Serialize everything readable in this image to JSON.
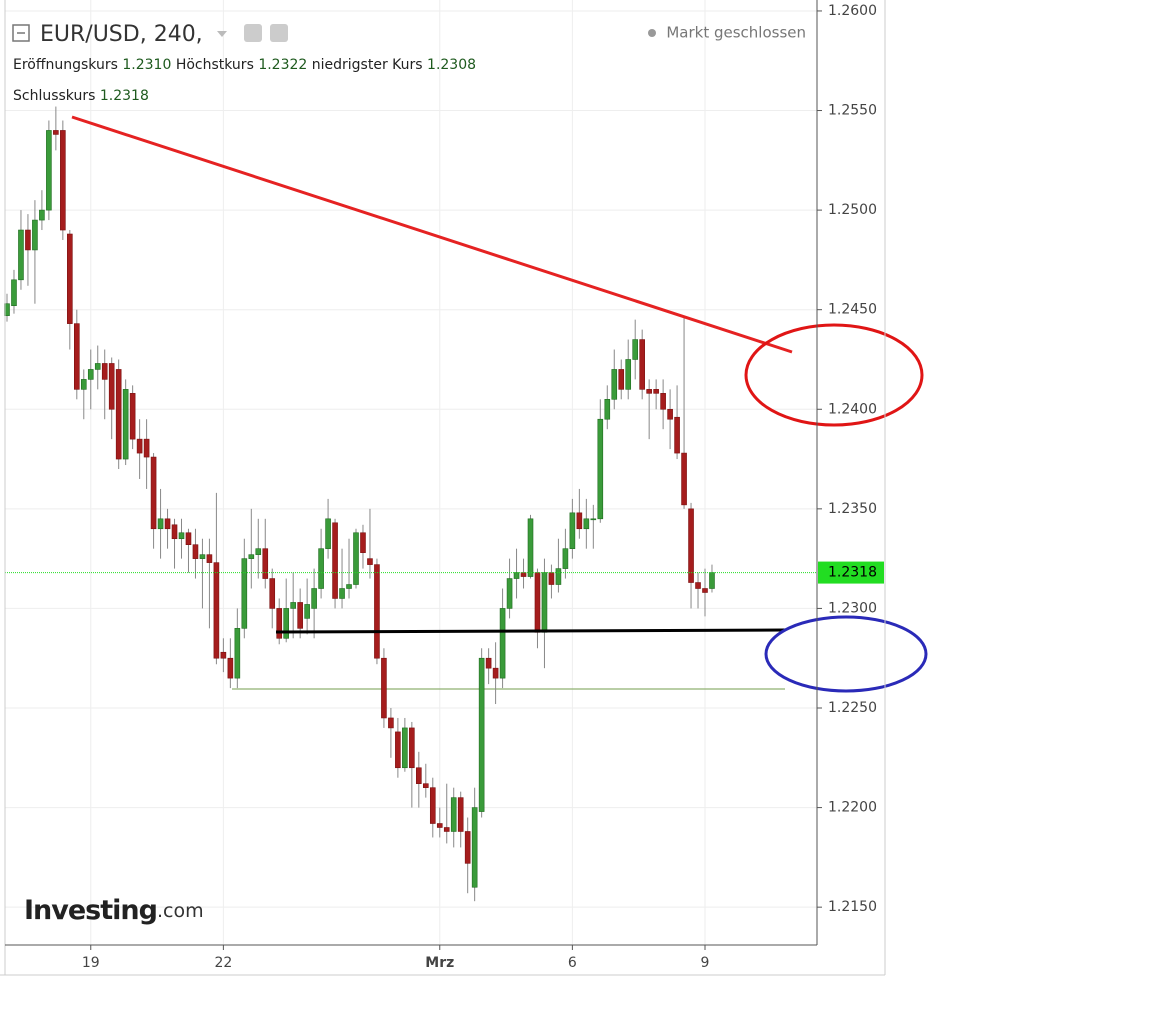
{
  "chart_data": {
    "type": "candlestick",
    "title": "EUR/USD, 240,",
    "status": "Markt geschlossen",
    "ohlc_legend": [
      {
        "label": "Eröffnungskurs",
        "value": 1.231,
        "value_label": "1.2310"
      },
      {
        "label": "Höchstkurs",
        "value": 1.2322
      },
      {
        "label": "niedrigster Kurs",
        "value": 1.2308
      },
      {
        "label": "Schlusskurs",
        "value": 1.2318
      }
    ],
    "logo": {
      "brand": "Investing",
      "suffix": ".com"
    },
    "up_color": "#3a9b3a",
    "down_color": "#a51d1d",
    "last_price": 1.2318,
    "last_price_color": "#22dd22",
    "grid": true,
    "ylim": [
      1.2131,
      1.26055
    ],
    "yticks": [
      {
        "value": 1.26,
        "label": "1.2600"
      },
      {
        "value": 1.255,
        "label": "1.2550"
      },
      {
        "value": 1.25,
        "label": "1.2500"
      },
      {
        "value": 1.245,
        "label": "1.2450"
      },
      {
        "value": 1.24,
        "label": "1.2400"
      },
      {
        "value": 1.235,
        "label": "1.2350"
      },
      {
        "value": 1.23,
        "label": "1.2300"
      },
      {
        "value": 1.225,
        "label": "1.2250"
      },
      {
        "value": 1.22,
        "label": "1.2200"
      },
      {
        "value": 1.215,
        "label": "1.2150"
      }
    ],
    "categories": [
      null,
      null,
      null,
      null,
      null,
      null,
      null,
      null,
      null,
      null,
      null,
      null,
      "19",
      null,
      null,
      null,
      null,
      null,
      null,
      null,
      null,
      null,
      null,
      null,
      null,
      null,
      null,
      null,
      null,
      null,
      null,
      "22",
      null,
      null,
      null,
      null,
      null,
      null,
      null,
      null,
      null,
      null,
      null,
      null,
      null,
      null,
      null,
      null,
      null,
      null,
      null,
      null,
      null,
      null,
      null,
      null,
      null,
      null,
      null,
      null,
      null,
      null,
      "Mrz",
      null,
      null,
      null,
      null,
      null,
      null,
      null,
      null,
      null,
      null,
      null,
      null,
      null,
      null,
      null,
      null,
      null,
      null,
      "6",
      null,
      null,
      null,
      null,
      null,
      null,
      null,
      null,
      null,
      null,
      null,
      null,
      null,
      null,
      null,
      null,
      null,
      null,
      "9",
      null
    ],
    "open": [
      1.2447,
      1.2452,
      1.2465,
      1.249,
      1.248,
      1.2495,
      1.25,
      1.254,
      1.254,
      1.2488,
      1.2443,
      1.241,
      1.2415,
      1.242,
      1.2423,
      1.2423,
      1.242,
      1.2375,
      1.2408,
      1.2385,
      1.2385,
      1.2376,
      1.234,
      1.2345,
      1.2342,
      1.2335,
      1.2338,
      1.2332,
      1.2325,
      1.2327,
      1.2323,
      1.2278,
      1.2275,
      1.2265,
      1.229,
      1.2325,
      1.2327,
      1.233,
      1.2315,
      1.23,
      1.2285,
      1.23,
      1.2303,
      1.2295,
      1.23,
      1.231,
      1.233,
      1.2343,
      1.2305,
      1.231,
      1.2312,
      1.2338,
      1.2325,
      1.2322,
      1.2275,
      1.2245,
      1.2238,
      1.222,
      1.224,
      1.222,
      1.2212,
      1.221,
      1.2192,
      1.219,
      1.2188,
      1.2205,
      1.2188,
      1.216,
      1.2198,
      1.2275,
      1.227,
      1.2265,
      1.23,
      1.2315,
      1.2318,
      1.2316,
      1.2318,
      1.2288,
      1.2318,
      1.2312,
      1.232,
      1.233,
      1.2348,
      1.234,
      1.2345,
      1.2345,
      1.2395,
      1.2405,
      1.242,
      1.241,
      1.2425,
      1.2435,
      1.241,
      1.241,
      1.2408,
      1.24,
      1.2396,
      1.2378,
      1.235,
      1.2313,
      1.231,
      1.231
    ],
    "high": [
      1.2458,
      1.247,
      1.25,
      1.2498,
      1.2505,
      1.251,
      1.2545,
      1.2552,
      1.2545,
      1.249,
      1.245,
      1.242,
      1.243,
      1.2432,
      1.243,
      1.2426,
      1.2425,
      1.2415,
      1.2412,
      1.2395,
      1.2395,
      1.2378,
      1.236,
      1.235,
      1.2345,
      1.2345,
      1.234,
      1.234,
      1.2335,
      1.2335,
      1.2358,
      1.2285,
      1.2285,
      1.23,
      1.2335,
      1.235,
      1.2345,
      1.2345,
      1.232,
      1.2305,
      1.2315,
      1.2318,
      1.231,
      1.2315,
      1.232,
      1.234,
      1.2355,
      1.2345,
      1.233,
      1.2335,
      1.234,
      1.2342,
      1.235,
      1.2325,
      1.228,
      1.225,
      1.2245,
      1.2245,
      1.2243,
      1.2228,
      1.2222,
      1.2215,
      1.22,
      1.2212,
      1.221,
      1.2208,
      1.2195,
      1.221,
      1.228,
      1.228,
      1.2283,
      1.231,
      1.2325,
      1.233,
      1.2325,
      1.2347,
      1.232,
      1.2325,
      1.2322,
      1.2335,
      1.234,
      1.2355,
      1.236,
      1.2355,
      1.2352,
      1.2405,
      1.2412,
      1.243,
      1.2425,
      1.2435,
      1.2445,
      1.244,
      1.2415,
      1.2415,
      1.2415,
      1.241,
      1.2412,
      1.2447,
      1.2353,
      1.2318,
      1.232,
      1.2322
    ],
    "low": [
      1.2444,
      1.2448,
      1.246,
      1.2462,
      1.2453,
      1.249,
      1.2495,
      1.253,
      1.2485,
      1.243,
      1.2405,
      1.2395,
      1.24,
      1.241,
      1.2395,
      1.2385,
      1.237,
      1.2372,
      1.238,
      1.2365,
      1.236,
      1.233,
      1.2325,
      1.233,
      1.232,
      1.2325,
      1.2318,
      1.2315,
      1.23,
      1.229,
      1.2272,
      1.2268,
      1.226,
      1.226,
      1.2285,
      1.231,
      1.2315,
      1.231,
      1.229,
      1.2282,
      1.2283,
      1.2285,
      1.2285,
      1.2287,
      1.2285,
      1.2305,
      1.2325,
      1.23,
      1.23,
      1.2305,
      1.231,
      1.232,
      1.2315,
      1.2272,
      1.224,
      1.2225,
      1.2215,
      1.2218,
      1.22,
      1.22,
      1.2205,
      1.2185,
      1.2185,
      1.2182,
      1.218,
      1.218,
      1.2157,
      1.2153,
      1.2195,
      1.2262,
      1.2252,
      1.226,
      1.2295,
      1.2305,
      1.231,
      1.2315,
      1.228,
      1.227,
      1.2305,
      1.2308,
      1.2315,
      1.2325,
      1.2335,
      1.233,
      1.233,
      1.2343,
      1.239,
      1.24,
      1.2405,
      1.2405,
      1.2415,
      1.2405,
      1.2385,
      1.24,
      1.239,
      1.238,
      1.2375,
      1.235,
      1.23,
      1.23,
      1.2296,
      1.2308
    ],
    "close": [
      1.2453,
      1.2465,
      1.249,
      1.248,
      1.2495,
      1.25,
      1.254,
      1.2538,
      1.249,
      1.2443,
      1.241,
      1.2415,
      1.242,
      1.2423,
      1.2415,
      1.24,
      1.2375,
      1.241,
      1.2385,
      1.2378,
      1.2376,
      1.234,
      1.2345,
      1.234,
      1.2335,
      1.2338,
      1.2332,
      1.2325,
      1.2327,
      1.2323,
      1.2275,
      1.2275,
      1.2265,
      1.229,
      1.2325,
      1.2327,
      1.233,
      1.2315,
      1.23,
      1.2285,
      1.23,
      1.2303,
      1.229,
      1.2302,
      1.231,
      1.233,
      1.2345,
      1.2305,
      1.231,
      1.2312,
      1.2338,
      1.2328,
      1.2322,
      1.2275,
      1.2245,
      1.224,
      1.222,
      1.224,
      1.222,
      1.2212,
      1.221,
      1.2192,
      1.219,
      1.2188,
      1.2205,
      1.2188,
      1.2172,
      1.22,
      1.2275,
      1.227,
      1.2265,
      1.23,
      1.2315,
      1.2318,
      1.2316,
      1.2345,
      1.2288,
      1.2318,
      1.2312,
      1.232,
      1.233,
      1.2348,
      1.234,
      1.2345,
      1.2345,
      1.2395,
      1.2405,
      1.242,
      1.241,
      1.2425,
      1.2435,
      1.241,
      1.2408,
      1.2408,
      1.24,
      1.2395,
      1.2378,
      1.2352,
      1.2313,
      1.231,
      1.2308,
      1.2318
    ]
  }
}
